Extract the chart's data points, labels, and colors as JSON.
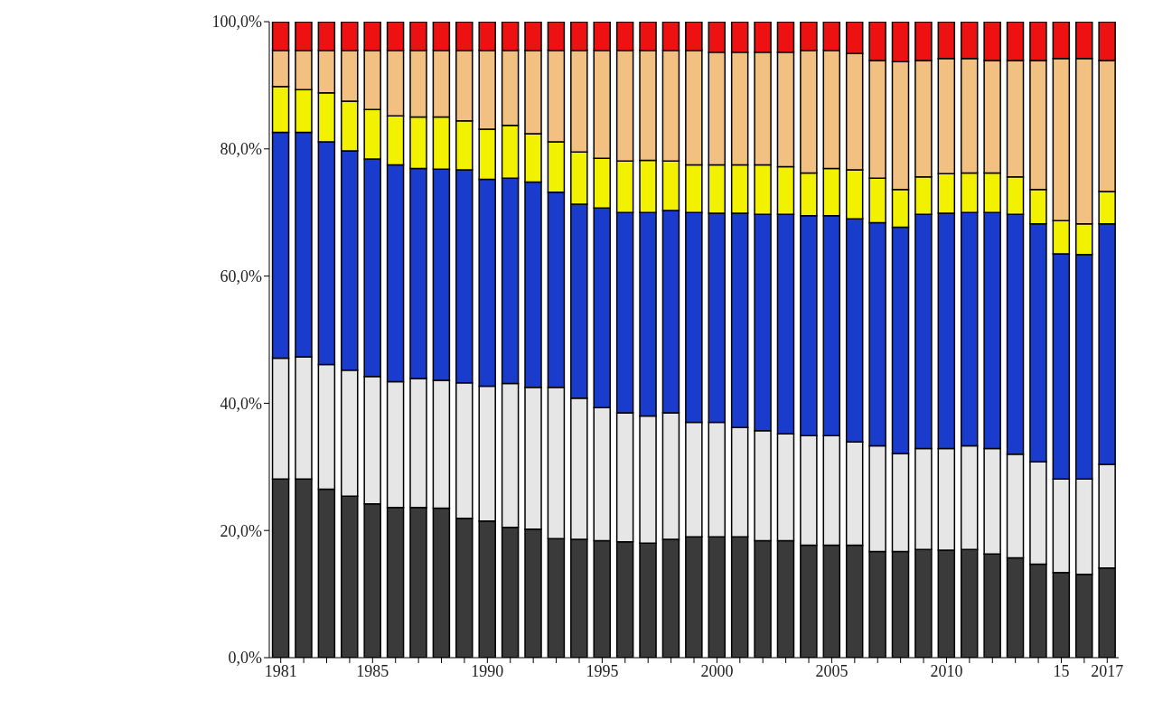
{
  "chart_data": {
    "type": "bar",
    "stacked": true,
    "categories": [
      "1981",
      null,
      null,
      null,
      "1985",
      null,
      null,
      null,
      null,
      "1990",
      null,
      null,
      null,
      null,
      "1995",
      null,
      null,
      null,
      null,
      "2000",
      null,
      null,
      null,
      null,
      "2005",
      null,
      null,
      null,
      null,
      "2010",
      null,
      null,
      null,
      null,
      "15",
      null,
      "2017"
    ],
    "series": [
      {
        "color": "#3a3a3a",
        "values": [
          28.1,
          28.1,
          26.5,
          25.4,
          24.2,
          23.6,
          23.6,
          23.5,
          21.9,
          21.5,
          20.5,
          20.2,
          18.7,
          18.6,
          18.4,
          18.2,
          18.0,
          18.6,
          19.0,
          19.0,
          19.0,
          18.4,
          18.4,
          17.7,
          17.7,
          17.7,
          16.7,
          16.7,
          17.0,
          16.9,
          17.0,
          16.3,
          15.7,
          14.7,
          13.4,
          13.1,
          14.1
        ]
      },
      {
        "color": "#e6e6e6",
        "values": [
          19.0,
          19.2,
          19.6,
          19.8,
          20.0,
          19.8,
          20.3,
          20.1,
          21.3,
          21.2,
          22.6,
          22.3,
          23.8,
          22.2,
          20.9,
          20.3,
          20.0,
          19.9,
          18.0,
          18.0,
          17.2,
          17.3,
          16.8,
          17.2,
          17.2,
          16.2,
          16.6,
          15.4,
          15.9,
          16.0,
          16.3,
          16.6,
          16.3,
          16.1,
          14.7,
          15.0,
          16.3
        ]
      },
      {
        "color": "#1a3ccc",
        "values": [
          35.5,
          35.3,
          35.0,
          34.5,
          34.2,
          34.1,
          33.0,
          33.2,
          33.5,
          32.5,
          32.3,
          32.3,
          30.7,
          30.5,
          31.4,
          31.5,
          32.0,
          31.8,
          33.0,
          32.9,
          33.7,
          34.0,
          34.5,
          34.6,
          34.6,
          35.1,
          35.1,
          35.6,
          36.8,
          37.0,
          36.7,
          37.1,
          37.7,
          37.4,
          35.4,
          35.3,
          37.8
        ]
      },
      {
        "color": "#f2f200",
        "values": [
          7.2,
          6.7,
          7.7,
          7.8,
          7.8,
          7.7,
          8.1,
          8.2,
          7.7,
          7.9,
          8.3,
          7.6,
          7.9,
          8.2,
          7.8,
          8.1,
          8.2,
          7.8,
          7.5,
          7.6,
          7.6,
          7.8,
          7.5,
          6.7,
          7.4,
          7.7,
          7.0,
          5.9,
          5.9,
          6.2,
          6.2,
          6.2,
          5.9,
          5.4,
          5.2,
          4.8,
          5.1
        ]
      },
      {
        "color": "#f2c080",
        "values": [
          5.7,
          6.2,
          6.7,
          8.0,
          9.3,
          10.3,
          10.5,
          10.5,
          11.1,
          12.4,
          11.8,
          13.1,
          14.4,
          16.0,
          17.0,
          17.4,
          17.3,
          17.4,
          18.0,
          17.7,
          17.7,
          17.7,
          18.0,
          19.3,
          18.6,
          18.3,
          18.5,
          20.1,
          18.3,
          18.1,
          18.0,
          17.7,
          18.3,
          20.3,
          25.5,
          26.0,
          20.6
        ]
      },
      {
        "color": "#ee1111",
        "values": [
          4.5,
          4.5,
          4.5,
          4.5,
          4.5,
          4.5,
          4.5,
          4.5,
          4.5,
          4.5,
          4.5,
          4.5,
          4.5,
          4.5,
          4.5,
          4.5,
          4.5,
          4.5,
          4.5,
          4.8,
          4.8,
          4.8,
          4.8,
          4.5,
          4.5,
          5.0,
          6.1,
          6.3,
          6.1,
          5.8,
          5.8,
          6.1,
          6.1,
          6.1,
          5.8,
          5.8,
          6.1
        ]
      }
    ],
    "ylim": [
      0,
      100
    ],
    "yticks": [
      {
        "value": 0,
        "label": "0,0%"
      },
      {
        "value": 20,
        "label": "20,0%"
      },
      {
        "value": 40,
        "label": "40,0%"
      },
      {
        "value": 60,
        "label": "60,0%"
      },
      {
        "value": 80,
        "label": "80,0%"
      },
      {
        "value": 100,
        "label": "100,0%"
      }
    ]
  }
}
